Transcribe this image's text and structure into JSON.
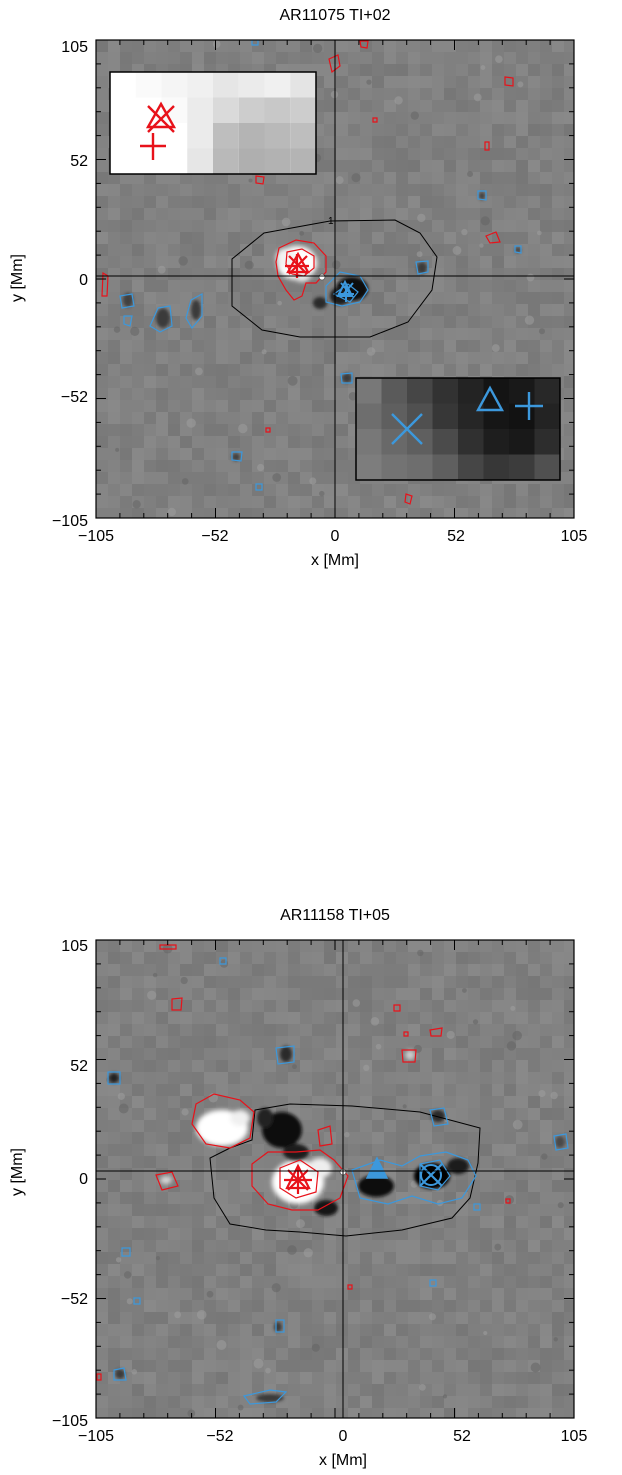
{
  "colors": {
    "background": "#808080",
    "positive_contour": "#e8121a",
    "negative_contour": "#3c98dc",
    "frame": "#000000"
  },
  "panels": [
    {
      "title": "AR11075   TI+02",
      "xlabel": "x [Mm]",
      "ylabel": "y [Mm]",
      "xticks": [
        "−105",
        "−52",
        "0",
        "52",
        "105"
      ],
      "yticks": [
        "105",
        "52",
        "0",
        "−52",
        "−105"
      ],
      "contour_label": "1",
      "x_range": [
        -105,
        105
      ],
      "y_range": [
        -105,
        105
      ],
      "has_insets": true
    },
    {
      "title": "AR11158   TI+05",
      "xlabel": "x [Mm]",
      "ylabel": "y [Mm]",
      "xticks": [
        "−105",
        "−52",
        "0",
        "52",
        "105"
      ],
      "yticks": [
        "105",
        "52",
        "0",
        "−52",
        "−105"
      ],
      "contour_label": "",
      "x_range": [
        -105,
        105
      ],
      "y_range": [
        -105,
        105
      ],
      "has_insets": false
    }
  ]
}
